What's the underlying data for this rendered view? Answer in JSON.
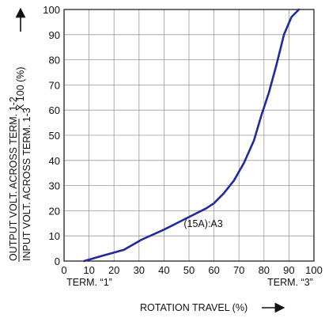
{
  "chart_data": {
    "type": "line",
    "title": "",
    "xlabel": "ROTATION TRAVEL (%)",
    "ylabel_top": "OUTPUT VOLT. ACROSS TERM. 1-2",
    "ylabel_bottom": "INPUT VOLT. ACROSS TERM. 1-3",
    "ylabel_suffix": "X 100 (%)",
    "xlim": [
      0,
      100
    ],
    "ylim": [
      0,
      100
    ],
    "grid": true,
    "x_ticks": [
      "0",
      "10",
      "20",
      "30",
      "40",
      "50",
      "60",
      "70",
      "80",
      "90",
      "100"
    ],
    "y_ticks": [
      "0",
      "10",
      "20",
      "30",
      "40",
      "50",
      "60",
      "70",
      "80",
      "90",
      "100"
    ],
    "x_annotations": [
      "TERM. “1”",
      "TERM. “3”"
    ],
    "curve_label": "(15A):A3",
    "line_color": "#1f2a9e",
    "series": [
      {
        "points": [
          [
            8,
            0
          ],
          [
            15,
            2
          ],
          [
            24,
            4.5
          ],
          [
            31,
            8.5
          ],
          [
            40,
            12.5
          ],
          [
            48,
            16.5
          ],
          [
            57,
            21
          ],
          [
            60,
            23
          ],
          [
            64,
            27
          ],
          [
            68,
            32
          ],
          [
            72,
            39
          ],
          [
            76,
            48
          ],
          [
            79,
            58
          ],
          [
            82,
            67
          ],
          [
            85,
            78
          ],
          [
            88,
            90
          ],
          [
            91,
            97
          ],
          [
            94,
            100
          ]
        ]
      }
    ]
  }
}
